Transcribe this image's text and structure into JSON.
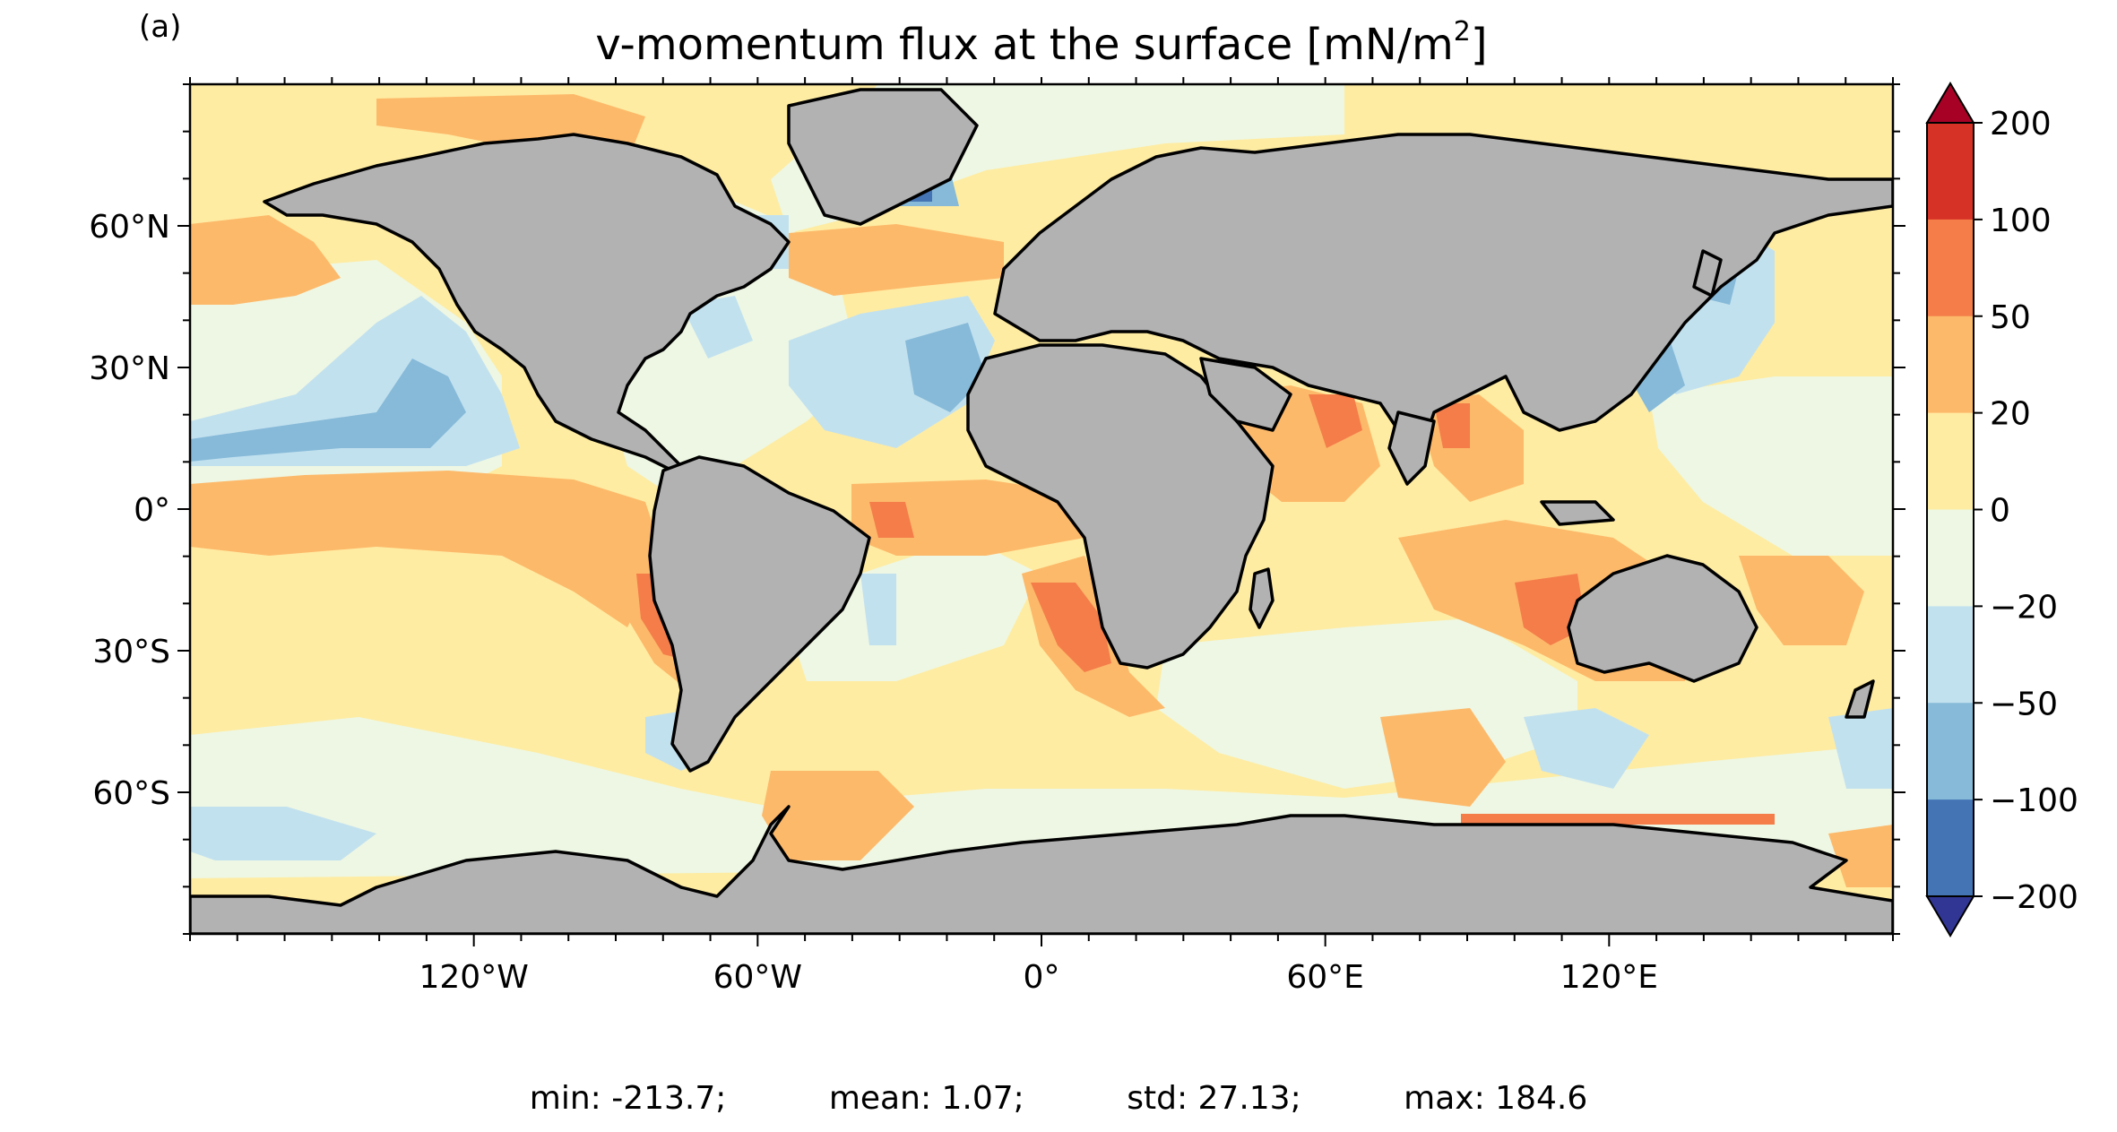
{
  "panel_label": "(a)",
  "title": {
    "main": "v-momentum flux at the surface [mN/m",
    "sup": "2",
    "close": "]"
  },
  "map": {
    "projection": "PlateCarree",
    "lon_range": [
      -180,
      180
    ],
    "lat_range": [
      -90,
      90
    ],
    "land_color": "#b2b2b2",
    "coastline_color": "#000000",
    "x_ticks": [
      {
        "lon": -120,
        "label": "120°W"
      },
      {
        "lon": -60,
        "label": "60°W"
      },
      {
        "lon": 0,
        "label": "0°"
      },
      {
        "lon": 60,
        "label": "60°E"
      },
      {
        "lon": 120,
        "label": "120°E"
      }
    ],
    "y_ticks": [
      {
        "lat": 60,
        "label": "60°N"
      },
      {
        "lat": 30,
        "label": "30°N"
      },
      {
        "lat": 0,
        "label": "0°"
      },
      {
        "lat": -30,
        "label": "30°S"
      },
      {
        "lat": -60,
        "label": "60°S"
      }
    ]
  },
  "colorbar": {
    "extend": "both",
    "levels": [
      {
        "label": "200",
        "color": "#d63226"
      },
      {
        "label": "100",
        "color": "#f47d4a"
      },
      {
        "label": "50",
        "color": "#fdb96a"
      },
      {
        "label": "20",
        "color": "#feeca2"
      },
      {
        "label": "0",
        "color": "#eef7e3"
      },
      {
        "label": "−20",
        "color": "#c2e1ef"
      },
      {
        "label": "−50",
        "color": "#86bad8"
      },
      {
        "label": "−100",
        "color": "#4474b4"
      },
      {
        "label": "−200",
        "color": null
      }
    ],
    "over_color": "#a70226",
    "under_color": "#313695"
  },
  "stats": {
    "min": "min: -213.7;",
    "mean": "mean: 1.07;",
    "std": "std: 27.13;",
    "max": "max: 184.6"
  }
}
